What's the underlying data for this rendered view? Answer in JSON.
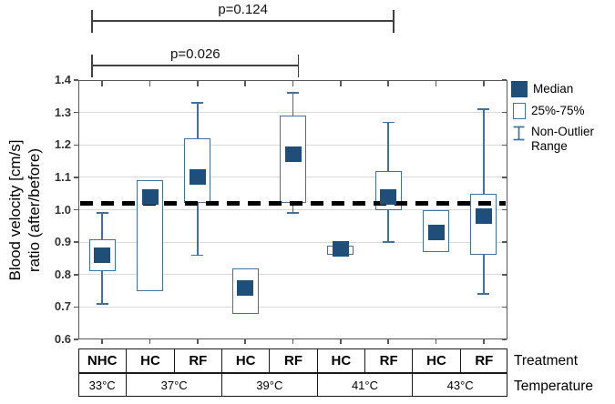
{
  "chart_data": {
    "type": "box",
    "ylabel_line1": "Blood velocity [cm/s]",
    "ylabel_line2": "ratio (after/before)",
    "ylim": [
      0.6,
      1.4
    ],
    "yticks": [
      "1.4",
      "1.3",
      "1.2",
      "1.1",
      "1.0",
      "0.9",
      "0.8",
      "0.7",
      "0.6"
    ],
    "reference_line": 1.02,
    "grid": "horizontal",
    "legend_position": "right",
    "legend": [
      {
        "label": "Median",
        "swatch": "filled-square"
      },
      {
        "label": "25%-75%",
        "swatch": "open-box"
      },
      {
        "label": "Non-Outlier Range",
        "swatch": "whisker-range"
      }
    ],
    "axis_labels": {
      "treatment": "Treatment",
      "temperature": "Temperature"
    },
    "temperatures": [
      {
        "label": "33°C",
        "span": 1
      },
      {
        "label": "37°C",
        "span": 2
      },
      {
        "label": "39°C",
        "span": 2
      },
      {
        "label": "41°C",
        "span": 2
      },
      {
        "label": "43°C",
        "span": 2
      }
    ],
    "groups": [
      {
        "treatment": "NHC",
        "temperature": "33°C",
        "median": 0.86,
        "q1": 0.81,
        "q3": 0.91,
        "whisker_low": 0.71,
        "whisker_high": 0.99
      },
      {
        "treatment": "HC",
        "temperature": "37°C",
        "median": 1.04,
        "q1": 0.75,
        "q3": 1.09,
        "whisker_low": null,
        "whisker_high": null
      },
      {
        "treatment": "RF",
        "temperature": "37°C",
        "median": 1.1,
        "q1": 1.02,
        "q3": 1.22,
        "whisker_low": 0.86,
        "whisker_high": 1.33
      },
      {
        "treatment": "HC",
        "temperature": "39°C",
        "median": 0.76,
        "q1": 0.68,
        "q3": 0.82,
        "whisker_low": null,
        "whisker_high": null
      },
      {
        "treatment": "RF",
        "temperature": "39°C",
        "median": 1.17,
        "q1": 1.02,
        "q3": 1.29,
        "whisker_low": 0.99,
        "whisker_high": 1.36
      },
      {
        "treatment": "HC",
        "temperature": "41°C",
        "median": 0.88,
        "q1": 0.86,
        "q3": 0.89,
        "whisker_low": null,
        "whisker_high": null
      },
      {
        "treatment": "RF",
        "temperature": "41°C",
        "median": 1.04,
        "q1": 1.0,
        "q3": 1.12,
        "whisker_low": 0.9,
        "whisker_high": 1.27
      },
      {
        "treatment": "HC",
        "temperature": "43°C",
        "median": 0.93,
        "q1": 0.87,
        "q3": 1.0,
        "whisker_low": null,
        "whisker_high": null
      },
      {
        "treatment": "RF",
        "temperature": "43°C",
        "median": 0.98,
        "q1": 0.86,
        "q3": 1.05,
        "whisker_low": 0.74,
        "whisker_high": 1.31
      }
    ],
    "significance": [
      {
        "label": "p=0.124",
        "from_group": 0,
        "to_group": 6
      },
      {
        "label": "p=0.026",
        "from_group": 0,
        "to_group": 4
      }
    ]
  },
  "colors": {
    "median_fill": "#1f4e79",
    "box_stroke": "#41719c",
    "whisker_stroke": "#41719c",
    "grid_line": "#d9d9d9",
    "axis_line": "#595959",
    "reference_line": "#000000",
    "table_border": "#1a1a1a",
    "bracket": "#404040"
  }
}
